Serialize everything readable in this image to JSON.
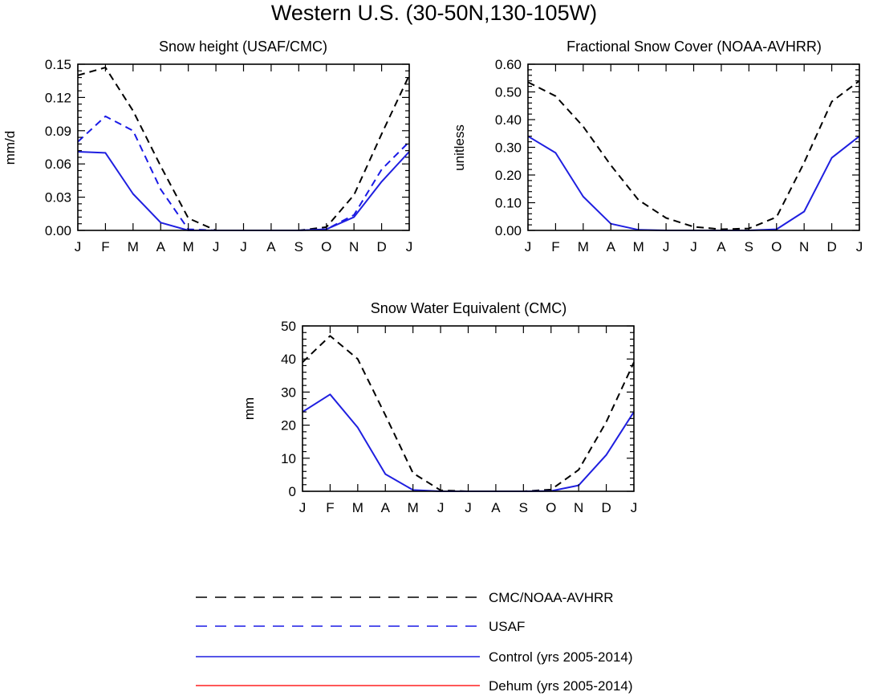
{
  "figure": {
    "title": "Western U.S. (30-50N,130-105W)"
  },
  "legend": [
    {
      "label": "CMC/NOAA-AVHRR",
      "color": "#000000",
      "dash": true
    },
    {
      "label": "USAF",
      "color": "#1a1ae6",
      "dash": true
    },
    {
      "label": "Control (yrs 2005-2014)",
      "color": "#1f1fe0",
      "dash": false
    },
    {
      "label": "Dehum (yrs 2005-2014)",
      "color": "#ff2020",
      "dash": false
    }
  ],
  "chart_data": [
    {
      "type": "line",
      "title": "Snow height (USAF/CMC)",
      "ylabel": "mm/d",
      "xlabel": "",
      "categories": [
        "J",
        "F",
        "M",
        "A",
        "M",
        "J",
        "J",
        "A",
        "S",
        "O",
        "N",
        "D",
        "J"
      ],
      "ylim": [
        0,
        0.15
      ],
      "yticks": [
        "0.00",
        "0.03",
        "0.06",
        "0.09",
        "0.12",
        "0.15"
      ],
      "series": [
        {
          "name": "CMC/NOAA-AVHRR",
          "color": "#000000",
          "dash": true,
          "values": [
            0.14,
            0.147,
            0.108,
            0.058,
            0.011,
            0.0,
            0.0,
            0.0,
            0.0,
            0.003,
            0.032,
            0.087,
            0.14
          ]
        },
        {
          "name": "USAF",
          "color": "#1a1ae6",
          "dash": true,
          "values": [
            0.08,
            0.103,
            0.09,
            0.037,
            0.001,
            0.0,
            0.0,
            0.0,
            0.0,
            0.001,
            0.014,
            0.055,
            0.08
          ]
        },
        {
          "name": "Control (yrs 2005-2014)",
          "color": "#1f1fe0",
          "dash": false,
          "values": [
            0.071,
            0.07,
            0.033,
            0.007,
            0.0,
            0.0,
            0.0,
            0.0,
            0.0,
            0.001,
            0.012,
            0.044,
            0.071
          ]
        }
      ]
    },
    {
      "type": "line",
      "title": "Fractional Snow Cover (NOAA-AVHRR)",
      "ylabel": "unitless",
      "xlabel": "",
      "categories": [
        "J",
        "F",
        "M",
        "A",
        "M",
        "J",
        "J",
        "A",
        "S",
        "O",
        "N",
        "D",
        "J"
      ],
      "ylim": [
        0,
        0.6
      ],
      "yticks": [
        "0.00",
        "0.10",
        "0.20",
        "0.30",
        "0.40",
        "0.50",
        "0.60"
      ],
      "series": [
        {
          "name": "CMC/NOAA-AVHRR",
          "color": "#000000",
          "dash": true,
          "values": [
            0.535,
            0.485,
            0.375,
            0.235,
            0.11,
            0.045,
            0.013,
            0.004,
            0.007,
            0.048,
            0.245,
            0.465,
            0.54
          ]
        },
        {
          "name": "Control (yrs 2005-2014)",
          "color": "#1f1fe0",
          "dash": false,
          "values": [
            0.34,
            0.28,
            0.122,
            0.024,
            0.002,
            0.0,
            0.0,
            0.0,
            0.0,
            0.004,
            0.068,
            0.262,
            0.34
          ]
        }
      ]
    },
    {
      "type": "line",
      "title": "Snow Water Equivalent (CMC)",
      "ylabel": "mm",
      "xlabel": "",
      "categories": [
        "J",
        "F",
        "M",
        "A",
        "M",
        "J",
        "J",
        "A",
        "S",
        "O",
        "N",
        "D",
        "J"
      ],
      "ylim": [
        0,
        50
      ],
      "yticks": [
        "0",
        "10",
        "20",
        "30",
        "40",
        "50"
      ],
      "series": [
        {
          "name": "CMC/NOAA-AVHRR",
          "color": "#000000",
          "dash": true,
          "values": [
            39,
            47,
            40,
            23,
            5.5,
            0.3,
            0.0,
            0.0,
            0.0,
            0.5,
            6.5,
            21,
            39
          ]
        },
        {
          "name": "Control (yrs 2005-2014)",
          "color": "#1f1fe0",
          "dash": false,
          "values": [
            24,
            29.3,
            19.3,
            5.2,
            0.4,
            0.0,
            0.0,
            0.0,
            0.0,
            0.1,
            1.8,
            11,
            24
          ]
        }
      ]
    }
  ]
}
